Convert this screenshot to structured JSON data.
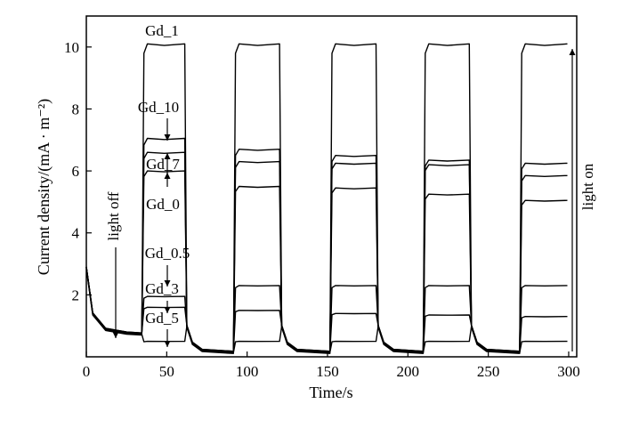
{
  "chart_data": {
    "type": "line",
    "title": "",
    "xlabel": "Time/s",
    "ylabel": "Current density/(mA · m⁻²)",
    "xlim": [
      0,
      305
    ],
    "ylim": [
      0,
      11
    ],
    "xticks": [
      0,
      50,
      100,
      150,
      200,
      250,
      300
    ],
    "yticks": [
      2,
      4,
      6,
      8,
      10
    ],
    "grid": false,
    "light_on_intervals": [
      [
        35,
        62
      ],
      [
        92,
        121
      ],
      [
        152,
        181
      ],
      [
        210,
        239
      ],
      [
        270,
        300
      ]
    ],
    "series": [
      {
        "name": "Gd_1",
        "on_values": [
          10.1,
          10.1,
          10.1,
          10.1,
          10.1
        ],
        "dark_value": 0.05
      },
      {
        "name": "Gd_10",
        "on_values": [
          7.05,
          6.7,
          6.5,
          6.35,
          6.25
        ],
        "dark_value": 0.1
      },
      {
        "name": "Gd_7",
        "on_values": [
          6.6,
          6.3,
          6.25,
          6.2,
          5.85
        ],
        "dark_value": 0.1
      },
      {
        "name": "Gd_0",
        "on_values": [
          6.0,
          5.5,
          5.45,
          5.25,
          5.05
        ],
        "dark_value": 0.1
      },
      {
        "name": "Gd_0.5",
        "on_values": [
          1.95,
          2.3,
          2.3,
          2.3,
          2.3
        ],
        "dark_value": 0.12
      },
      {
        "name": "Gd_3",
        "on_values": [
          1.6,
          1.5,
          1.4,
          1.35,
          1.3
        ],
        "dark_value": 0.12
      },
      {
        "name": "Gd_5",
        "on_values": [
          0.5,
          0.5,
          0.5,
          0.5,
          0.5
        ],
        "dark_value": 0.08
      }
    ],
    "annotations": {
      "light_off": "light off",
      "light_on": "light on"
    }
  }
}
